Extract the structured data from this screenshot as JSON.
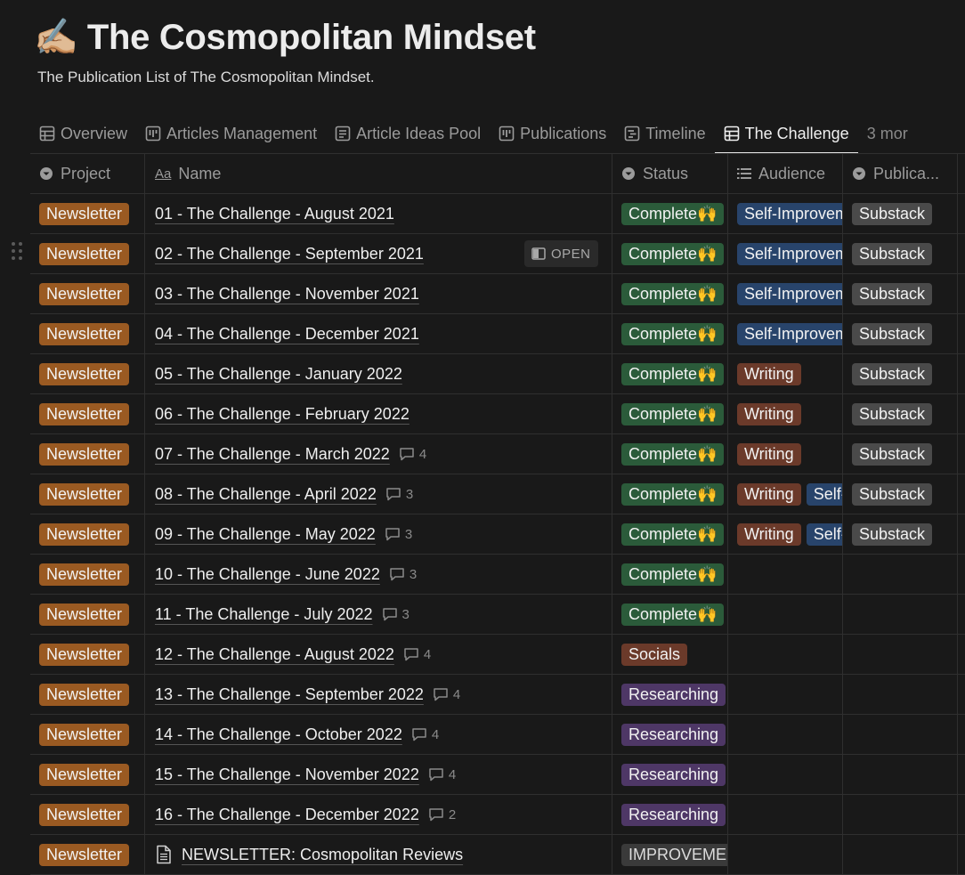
{
  "page": {
    "emoji": "✍🏼",
    "title": "The Cosmopolitan Mindset",
    "subtitle": "The Publication List of The Cosmopolitan Mindset."
  },
  "tabs": [
    {
      "label": "Overview",
      "icon": "table-icon"
    },
    {
      "label": "Articles Management",
      "icon": "board-icon"
    },
    {
      "label": "Article Ideas Pool",
      "icon": "list-view-icon"
    },
    {
      "label": "Publications",
      "icon": "board-icon"
    },
    {
      "label": "Timeline",
      "icon": "timeline-icon"
    },
    {
      "label": "The Challenge",
      "icon": "table-icon",
      "active": true
    }
  ],
  "tabs_more": "3 mor",
  "columns": {
    "project": "Project",
    "name": "Name",
    "status": "Status",
    "audience": "Audience",
    "publication": "Publica..."
  },
  "open_label": "OPEN",
  "colors": {
    "newsletter": "#9a5a22",
    "complete": "#2b5b3a",
    "researching": "#4e3766",
    "socials": "#6b3a2a",
    "self_improvement": "#28446b",
    "writing": "#6b3a2a",
    "substack": "#4a4a4a"
  },
  "rows": [
    {
      "project": "Newsletter",
      "name": "01 - The Challenge - August 2021",
      "comments": "",
      "status": "Complete🙌",
      "status_kind": "complete",
      "audience": [
        "Self-Improvement"
      ],
      "publication": "Substack"
    },
    {
      "project": "Newsletter",
      "name": "02 - The Challenge - September 2021",
      "comments": "",
      "status": "Complete🙌",
      "status_kind": "complete",
      "audience": [
        "Self-Improvement"
      ],
      "publication": "Substack",
      "hovered": true
    },
    {
      "project": "Newsletter",
      "name": "03 - The Challenge - November 2021",
      "comments": "",
      "status": "Complete🙌",
      "status_kind": "complete",
      "audience": [
        "Self-Improvement"
      ],
      "publication": "Substack"
    },
    {
      "project": "Newsletter",
      "name": "04 - The Challenge - December 2021",
      "comments": "",
      "status": "Complete🙌",
      "status_kind": "complete",
      "audience": [
        "Self-Improvement"
      ],
      "publication": "Substack"
    },
    {
      "project": "Newsletter",
      "name": "05 - The Challenge - January 2022",
      "comments": "",
      "status": "Complete🙌",
      "status_kind": "complete",
      "audience": [
        "Writing"
      ],
      "publication": "Substack"
    },
    {
      "project": "Newsletter",
      "name": "06 - The Challenge - February 2022",
      "comments": "",
      "status": "Complete🙌",
      "status_kind": "complete",
      "audience": [
        "Writing"
      ],
      "publication": "Substack"
    },
    {
      "project": "Newsletter",
      "name": "07 - The Challenge - March 2022",
      "comments": "4",
      "status": "Complete🙌",
      "status_kind": "complete",
      "audience": [
        "Writing"
      ],
      "publication": "Substack"
    },
    {
      "project": "Newsletter",
      "name": "08 - The Challenge - April 2022",
      "comments": "3",
      "status": "Complete🙌",
      "status_kind": "complete",
      "audience": [
        "Writing",
        "Self-Improvement"
      ],
      "publication": "Substack"
    },
    {
      "project": "Newsletter",
      "name": "09 - The Challenge - May 2022",
      "comments": "3",
      "status": "Complete🙌",
      "status_kind": "complete",
      "audience": [
        "Writing",
        "Self-Improvement"
      ],
      "publication": "Substack"
    },
    {
      "project": "Newsletter",
      "name": "10 - The Challenge - June 2022",
      "comments": "3",
      "status": "Complete🙌",
      "status_kind": "complete",
      "audience": [],
      "publication": ""
    },
    {
      "project": "Newsletter",
      "name": "11 - The Challenge - July 2022",
      "comments": "3",
      "status": "Complete🙌",
      "status_kind": "complete",
      "audience": [],
      "publication": ""
    },
    {
      "project": "Newsletter",
      "name": "12 - The Challenge - August 2022",
      "comments": "4",
      "status": "Socials",
      "status_kind": "socials",
      "audience": [],
      "publication": ""
    },
    {
      "project": "Newsletter",
      "name": "13 - The Challenge - September 2022",
      "comments": "4",
      "status": "Researching",
      "status_kind": "researching",
      "audience": [],
      "publication": ""
    },
    {
      "project": "Newsletter",
      "name": "14 - The Challenge - October 2022",
      "comments": "4",
      "status": "Researching",
      "status_kind": "researching",
      "audience": [],
      "publication": ""
    },
    {
      "project": "Newsletter",
      "name": "15 - The Challenge - November 2022",
      "comments": "4",
      "status": "Researching",
      "status_kind": "researching",
      "audience": [],
      "publication": ""
    },
    {
      "project": "Newsletter",
      "name": "16 - The Challenge - December 2022",
      "comments": "2",
      "status": "Researching",
      "status_kind": "researching",
      "audience": [],
      "publication": ""
    },
    {
      "project": "Newsletter",
      "name": "NEWSLETTER: Cosmopolitan Reviews",
      "comments": "",
      "status": "IMPROVEMENT",
      "status_kind": "improve",
      "audience": [],
      "publication": "",
      "doc_icon": true
    }
  ]
}
